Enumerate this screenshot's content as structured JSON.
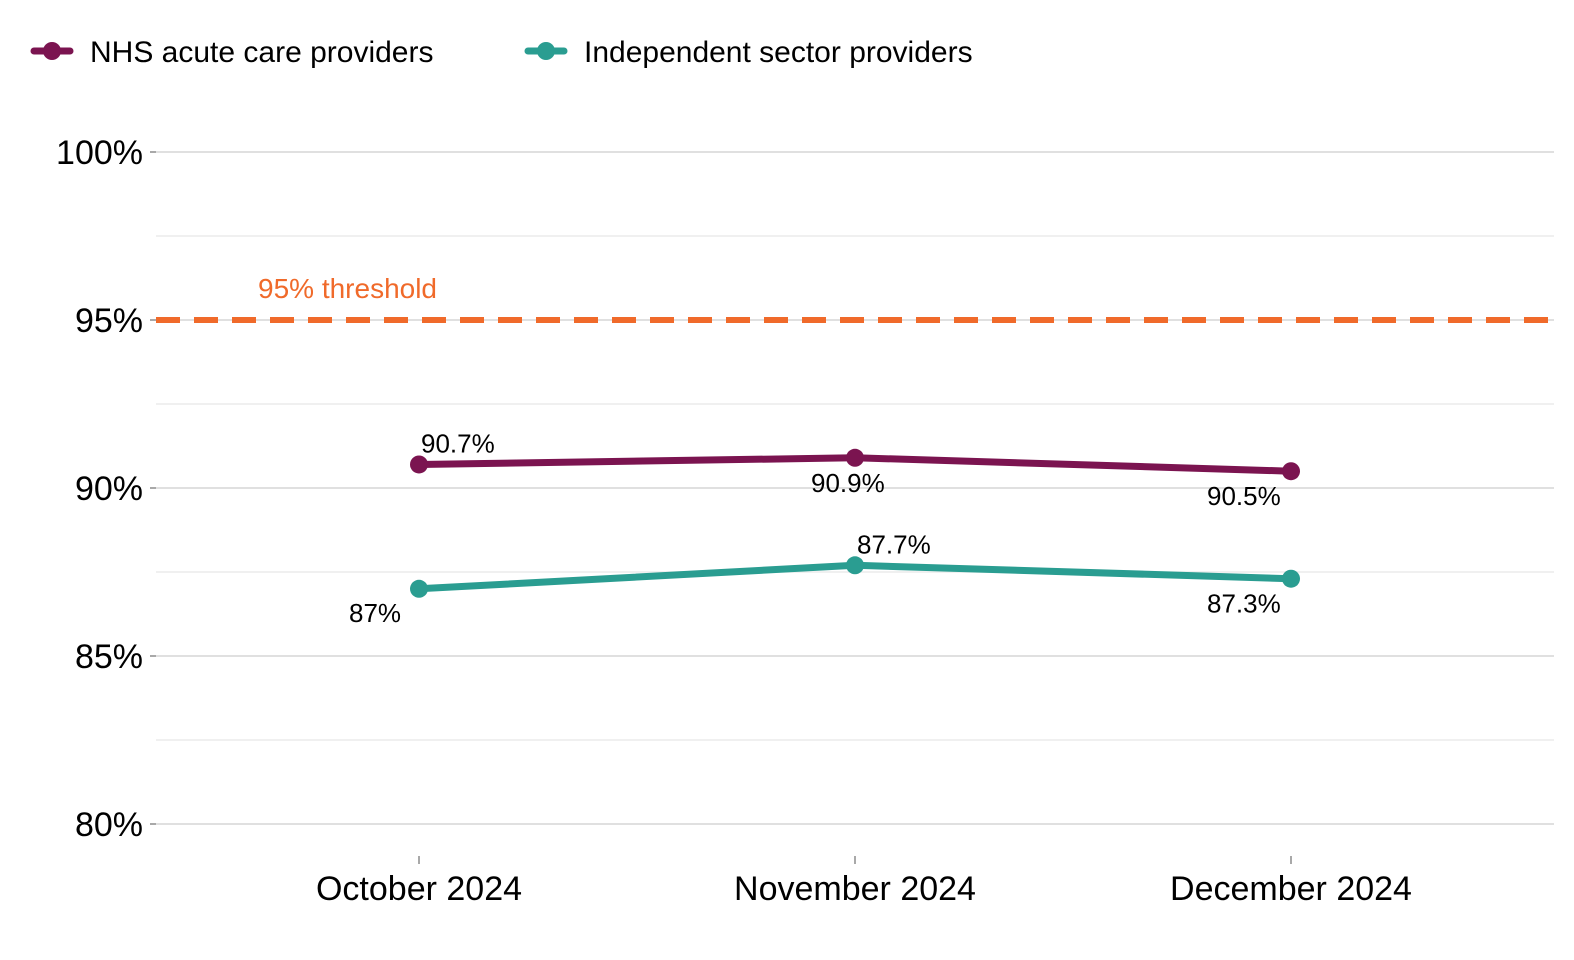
{
  "chart_data": {
    "type": "line",
    "categories": [
      "October 2024",
      "November 2024",
      "December 2024"
    ],
    "series": [
      {
        "name": "NHS acute care providers",
        "values": [
          90.7,
          90.9,
          90.5
        ],
        "labels": [
          "90.7%",
          "90.9%",
          "90.5%"
        ],
        "color": "#7b1450"
      },
      {
        "name": "Independent sector providers",
        "values": [
          87.0,
          87.7,
          87.3
        ],
        "labels": [
          "87%",
          "87.7%",
          "87.3%"
        ],
        "color": "#2a9d91"
      }
    ],
    "yticks": [
      {
        "value": 80,
        "label": "80%"
      },
      {
        "value": 85,
        "label": "85%"
      },
      {
        "value": 90,
        "label": "90%"
      },
      {
        "value": 95,
        "label": "95%"
      },
      {
        "value": 100,
        "label": "100%"
      }
    ],
    "minor_gridlines": [
      82.5,
      87.5,
      92.5,
      97.5
    ],
    "ylim": [
      79,
      102
    ],
    "threshold": {
      "value": 95,
      "label": "95% threshold",
      "color": "#f06a2a"
    },
    "legend_position": "top-left",
    "grid": true
  }
}
